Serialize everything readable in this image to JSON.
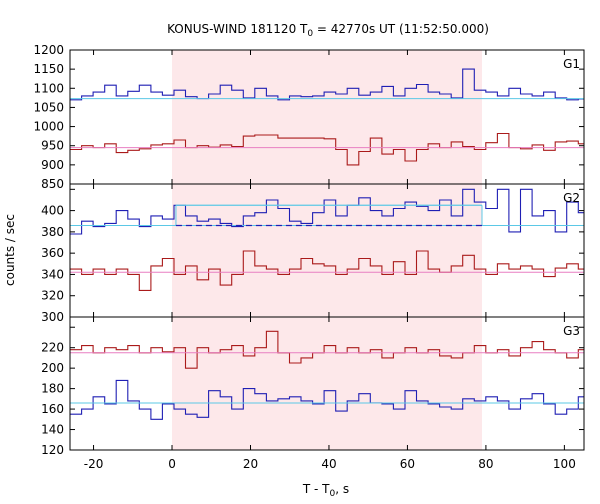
{
  "chart_data": {
    "type": "line",
    "title": "KONUS-WIND 181120 T",
    "title_sub": "0",
    "title_rest": " = 42770s UT (11:52:50.000)",
    "xlabel": "T - T",
    "xlabel_sub": "0",
    "xlabel_rest": ", s",
    "ylabel": "counts / sec",
    "xlim": [
      -26,
      105
    ],
    "x_ticks": [
      "-20",
      "0",
      "20",
      "40",
      "60",
      "80",
      "100"
    ],
    "x_tick_values": [
      -20,
      0,
      20,
      40,
      60,
      80,
      100
    ],
    "highlight_interval": [
      0,
      79
    ],
    "highlight_color": "#fde8ea",
    "bin_start": -26,
    "bin_width": 2.944,
    "panels": [
      {
        "label": "G1",
        "ylim": [
          850,
          1200
        ],
        "y_ticks": [
          "850",
          "900",
          "950",
          "1000",
          "1050",
          "1100",
          "1150",
          "1200"
        ],
        "y_tick_values": [
          850,
          900,
          950,
          1000,
          1050,
          1100,
          1150,
          1200
        ],
        "series": [
          {
            "color": "#1f1fb4",
            "bkg": 1073,
            "bkg_color": "#5bc8e6",
            "values": [
              1070,
              1080,
              1090,
              1108,
              1080,
              1092,
              1108,
              1090,
              1082,
              1095,
              1078,
              1073,
              1085,
              1108,
              1095,
              1075,
              1100,
              1080,
              1070,
              1080,
              1078,
              1080,
              1090,
              1085,
              1100,
              1082,
              1090,
              1105,
              1080,
              1100,
              1110,
              1090,
              1085,
              1075,
              1150,
              1095,
              1090,
              1080,
              1100,
              1085,
              1080,
              1090,
              1075,
              1070,
              1072,
              1078,
              1075,
              1085
            ]
          },
          {
            "color": "#aa1a1a",
            "bkg": 945,
            "bkg_color": "#e87fc2",
            "values": [
              940,
              950,
              945,
              955,
              932,
              938,
              942,
              952,
              955,
              965,
              945,
              950,
              946,
              952,
              948,
              975,
              978,
              978,
              970,
              970,
              970,
              970,
              968,
              940,
              900,
              935,
              970,
              928,
              940,
              910,
              940,
              955,
              945,
              960,
              948,
              940,
              958,
              982,
              945,
              942,
              952,
              938,
              960,
              962,
              955,
              970,
              958,
              960,
              946,
              982,
              962,
              940
            ]
          }
        ]
      },
      {
        "label": "G2",
        "ylim": [
          300,
          425
        ],
        "y_ticks": [
          "300",
          "320",
          "340",
          "360",
          "380",
          "400",
          "420"
        ],
        "y_tick_values": [
          300,
          320,
          340,
          360,
          380,
          400,
          420
        ],
        "series": [
          {
            "color": "#1f1fb4",
            "bkg": 386,
            "bkg_color": "#5bc8e6",
            "fit_level": 405,
            "fit_range": [
              1,
              79
            ],
            "dashed_level": 386,
            "values": [
              378,
              390,
              385,
              388,
              400,
              392,
              385,
              395,
              392,
              405,
              395,
              390,
              392,
              388,
              385,
              395,
              398,
              410,
              402,
              390,
              388,
              398,
              410,
              395,
              405,
              412,
              400,
              395,
              402,
              408,
              404,
              400,
              410,
              395,
              420,
              408,
              402,
              420,
              380,
              420,
              395,
              400,
              380,
              408,
              398,
              390,
              385,
              392,
              372,
              400
            ]
          },
          {
            "color": "#aa1a1a",
            "bkg": 342,
            "bkg_color": "#e87fc2",
            "values": [
              345,
              340,
              345,
              340,
              345,
              340,
              325,
              348,
              355,
              340,
              348,
              335,
              345,
              330,
              340,
              362,
              348,
              345,
              340,
              345,
              355,
              350,
              348,
              340,
              345,
              355,
              348,
              340,
              352,
              340,
              362,
              345,
              342,
              348,
              358,
              345,
              340,
              350,
              345,
              348,
              345,
              338,
              346,
              350,
              345,
              340,
              342,
              345,
              338,
              345,
              350,
              348
            ]
          }
        ]
      },
      {
        "label": "G3",
        "ylim": [
          120,
          250
        ],
        "y_ticks": [
          "120",
          "140",
          "160",
          "180",
          "200",
          "220",
          "240"
        ],
        "y_tick_values": [
          120,
          140,
          160,
          180,
          200,
          220,
          240
        ],
        "series": [
          {
            "color": "#aa1a1a",
            "bkg": 215,
            "bkg_color": "#e87fc2",
            "values": [
              218,
              222,
              215,
              220,
              218,
              222,
              215,
              220,
              216,
              220,
              200,
              220,
              215,
              218,
              222,
              212,
              220,
              236,
              215,
              205,
              210,
              215,
              222,
              215,
              220,
              215,
              218,
              210,
              215,
              220,
              215,
              218,
              212,
              210,
              215,
              222,
              215,
              218,
              212,
              220,
              226,
              218,
              215,
              210,
              218,
              222,
              215,
              225,
              228,
              215,
              220,
              218
            ]
          },
          {
            "color": "#1f1fb4",
            "bkg": 166,
            "bkg_color": "#5bc8e6",
            "values": [
              155,
              160,
              172,
              165,
              188,
              168,
              160,
              150,
              165,
              160,
              155,
              152,
              178,
              172,
              160,
              180,
              175,
              168,
              170,
              172,
              168,
              165,
              178,
              158,
              168,
              175,
              166,
              165,
              160,
              178,
              168,
              165,
              162,
              160,
              170,
              168,
              172,
              168,
              160,
              170,
              175,
              165,
              155,
              160,
              172,
              168,
              175,
              165,
              160,
              168,
              175,
              162
            ]
          }
        ]
      }
    ]
  }
}
